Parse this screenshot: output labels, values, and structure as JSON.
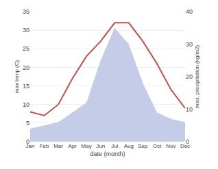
{
  "chart_data": {
    "type": "line",
    "categories": [
      "Jan",
      "Feb",
      "Mar",
      "Apr",
      "May",
      "Jun",
      "Jul",
      "Aug",
      "Sep",
      "Oct",
      "Nov",
      "Dec"
    ],
    "series": [
      {
        "type": "area",
        "axis": "y2",
        "color": "#c5cce8",
        "values": [
          4,
          5,
          6,
          9,
          12,
          25,
          35,
          30,
          18,
          9,
          7,
          6
        ]
      },
      {
        "type": "line",
        "color": "#c0504d",
        "values": [
          8,
          7,
          10,
          17,
          23,
          27,
          32,
          32,
          27,
          21,
          14,
          9
        ]
      }
    ],
    "xlabel": "date (month)",
    "ylabel": "max temp (C)",
    "y2label": "med. precipitation (kg/m2)",
    "ylim": [
      0,
      35
    ],
    "yticks": [
      0,
      5,
      10,
      15,
      20,
      25,
      30,
      35
    ],
    "y2lim": [
      0,
      40
    ],
    "y2ticks": [
      0,
      10,
      20,
      30,
      40
    ],
    "grid": true
  }
}
